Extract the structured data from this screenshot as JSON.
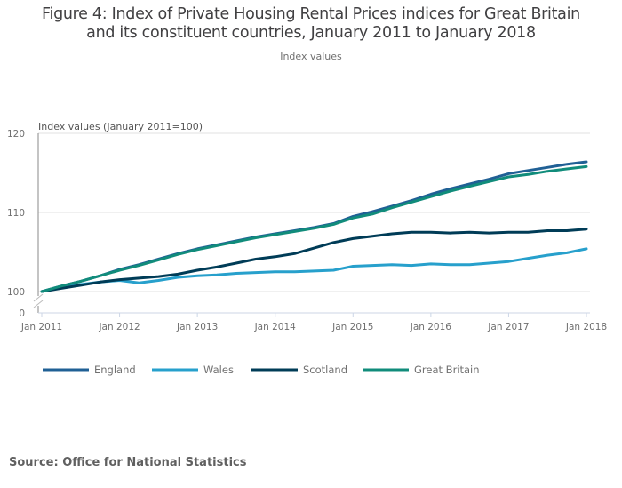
{
  "header": {
    "title_line1": "Figure 4: Index of Private Housing Rental Prices indices for Great Britain",
    "title_line2": "and its constituent countries, January 2011 to January 2018",
    "subtitle": "Index values"
  },
  "footer": {
    "source": "Source: Office for National Statistics"
  },
  "chart_data": {
    "type": "line",
    "title": "Figure 4: Index of Private Housing Rental Prices indices for Great Britain and its constituent countries, January 2011 to January 2018",
    "subtitle": "Index values",
    "ylabel": "Index values (January 2011=100)",
    "xlabel": "",
    "ylim": [
      100,
      120
    ],
    "y_axis_break": true,
    "y_ticks": [
      0,
      100,
      110,
      120
    ],
    "x_ticks": [
      "Jan 2011",
      "Jan 2012",
      "Jan 2013",
      "Jan 2014",
      "Jan 2015",
      "Jan 2016",
      "Jan 2017",
      "Jan 2018"
    ],
    "grid": true,
    "legend_position": "bottom",
    "x": [
      "Jan 2011",
      "Apr 2011",
      "Jul 2011",
      "Oct 2011",
      "Jan 2012",
      "Apr 2012",
      "Jul 2012",
      "Oct 2012",
      "Jan 2013",
      "Apr 2013",
      "Jul 2013",
      "Oct 2013",
      "Jan 2014",
      "Apr 2014",
      "Jul 2014",
      "Oct 2014",
      "Jan 2015",
      "Apr 2015",
      "Jul 2015",
      "Oct 2015",
      "Jan 2016",
      "Apr 2016",
      "Jul 2016",
      "Oct 2016",
      "Jan 2017",
      "Apr 2017",
      "Jul 2017",
      "Oct 2017",
      "Jan 2018"
    ],
    "series": [
      {
        "name": "England",
        "color": "#206095",
        "values": [
          100.0,
          100.7,
          101.3,
          102.0,
          102.8,
          103.4,
          104.1,
          104.8,
          105.4,
          105.9,
          106.4,
          106.9,
          107.3,
          107.7,
          108.1,
          108.6,
          109.5,
          110.1,
          110.8,
          111.5,
          112.3,
          113.0,
          113.6,
          114.2,
          114.9,
          115.3,
          115.7,
          116.1,
          116.4
        ]
      },
      {
        "name": "Wales",
        "color": "#27a0cc",
        "values": [
          100.0,
          100.5,
          100.9,
          101.2,
          101.4,
          101.1,
          101.4,
          101.8,
          102.0,
          102.1,
          102.3,
          102.4,
          102.5,
          102.5,
          102.6,
          102.7,
          103.2,
          103.3,
          103.4,
          103.3,
          103.5,
          103.4,
          103.4,
          103.6,
          103.8,
          104.2,
          104.6,
          104.9,
          105.4
        ]
      },
      {
        "name": "Scotland",
        "color": "#003c57",
        "values": [
          100.0,
          100.4,
          100.8,
          101.2,
          101.5,
          101.7,
          101.9,
          102.2,
          102.7,
          103.1,
          103.6,
          104.1,
          104.4,
          104.8,
          105.5,
          106.2,
          106.7,
          107.0,
          107.3,
          107.5,
          107.5,
          107.4,
          107.5,
          107.4,
          107.5,
          107.5,
          107.7,
          107.7,
          107.9
        ]
      },
      {
        "name": "Great Britain",
        "color": "#118c7b",
        "values": [
          100.0,
          100.7,
          101.3,
          102.0,
          102.7,
          103.3,
          104.0,
          104.7,
          105.3,
          105.8,
          106.3,
          106.8,
          107.2,
          107.6,
          108.0,
          108.5,
          109.3,
          109.8,
          110.6,
          111.3,
          112.0,
          112.7,
          113.3,
          113.9,
          114.5,
          114.8,
          115.2,
          115.5,
          115.8
        ]
      }
    ]
  }
}
